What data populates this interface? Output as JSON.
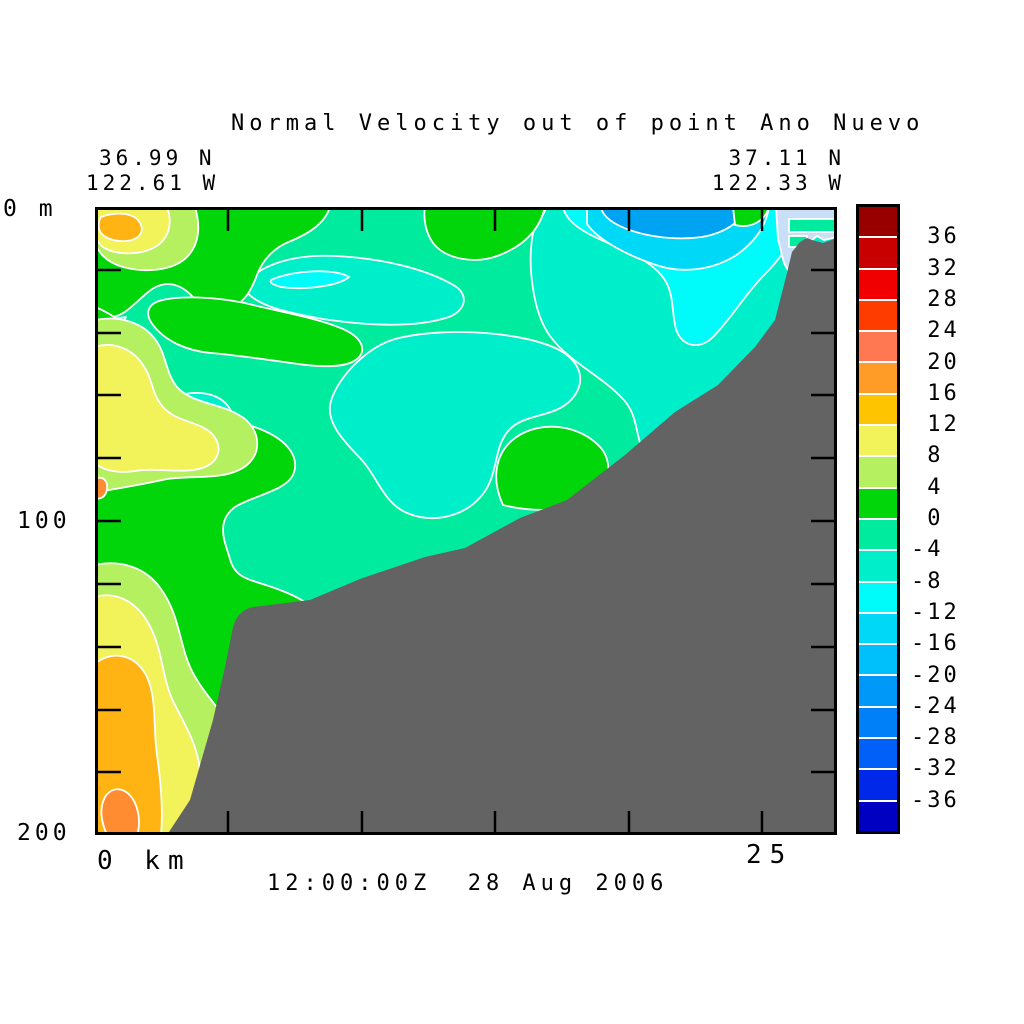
{
  "palette": {
    "background": "#FFFFFF",
    "text": "#000000",
    "frame": "#000000",
    "contour": "#FFFFFF",
    "spring_green": "#00EB9E",
    "green": "#00D60A",
    "yellow_green": "#B4F05F",
    "yellow": "#F2F25A",
    "orange": "#FFB414",
    "deep_orange": "#FF8C30",
    "turquoise": "#00EFCB",
    "cyan": "#00FBFB",
    "light_blue": "#00D8F8",
    "blue": "#00A2F2",
    "pale_blue": "#C9DFF7",
    "seafloor_gray": "#636363"
  },
  "chart_data": {
    "type": "filled-contour",
    "title": "Normal Velocity out of point Ano Nuevo",
    "time_label": "12:00:00Z  28 Aug 2006",
    "endpoints": {
      "left": {
        "lat": "36.99 N",
        "lon": "122.61 W"
      },
      "right": {
        "lat": "37.11 N",
        "lon": "122.33 W"
      }
    },
    "x_axis": {
      "origin_label": "0 km",
      "right_tick_label": "25",
      "units": "km",
      "tick_interval_km": 5,
      "range_km": [
        0,
        27.8
      ]
    },
    "y_axis": {
      "top_label": "0 m",
      "mid_label": "100",
      "bottom_label": "200",
      "units": "m",
      "range_m": [
        0,
        200
      ],
      "minor_tick_interval_m": 20
    },
    "colorbar": {
      "tick_labels": [
        "36",
        "32",
        "28",
        "24",
        "20",
        "16",
        "12",
        "8",
        "4",
        "0",
        "-4",
        "-8",
        "-12",
        "-16",
        "-20",
        "-24",
        "-28",
        "-32",
        "-36"
      ],
      "segment_colors": [
        "#980000",
        "#C80000",
        "#F00000",
        "#FF3C00",
        "#FF7852",
        "#FF9C28",
        "#FFC400",
        "#F2F25A",
        "#B4F05F",
        "#00D60A",
        "#00EB9E",
        "#00EFCB",
        "#00FBFB",
        "#00D8F8",
        "#00C0FC",
        "#0098F8",
        "#0080F8",
        "#0060F8",
        "#0028E8",
        "#0000C2"
      ],
      "value_min": -36,
      "value_max": 36,
      "level_step": 4
    },
    "field_summary": [
      {
        "where": "upper water column near coast (right)",
        "value_range": "-24 to -8"
      },
      {
        "where": "central water column",
        "value_range": "-8 to 0"
      },
      {
        "where": "offshore upper water (left)",
        "value_range": "0 to 8"
      },
      {
        "where": "offshore deep water near bottom (lower left)",
        "value_range": "8 to 24"
      }
    ],
    "bathymetry": {
      "description": "gray seafloor rising from below 200 m offshore to near the surface at the coast"
    }
  }
}
